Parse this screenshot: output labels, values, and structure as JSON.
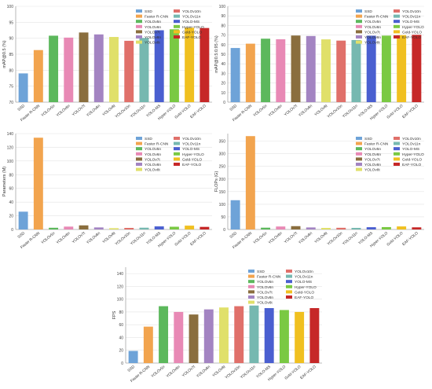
{
  "chart_data": [
    {
      "type": "bar",
      "title": "",
      "xlabel": "",
      "ylabel": "mAP@0.5 (%)",
      "ylim": [
        70,
        100
      ],
      "yticks": [
        70,
        75,
        80,
        85,
        90,
        95,
        100
      ],
      "grid": true,
      "legend": "top-right, two columns",
      "categories": [
        "SSD",
        "Faster R-CNN",
        "YOLOv5n",
        "YOLOv6n",
        "YOLOv7t",
        "YOLOv8n",
        "YOLOv8t",
        "YOLOv10n",
        "YOLOv11n",
        "YOLO-MS",
        "Hyper-YOLO",
        "Gold-YOLO",
        "EAF-YOLO"
      ],
      "values": [
        79.0,
        86.3,
        90.8,
        90.2,
        91.8,
        91.2,
        90.4,
        89.2,
        90.1,
        92.5,
        92.8,
        93.3,
        93.2
      ]
    },
    {
      "type": "bar",
      "title": "",
      "xlabel": "",
      "ylabel": "mAP@0.5:0.95 (%)",
      "ylim": [
        0,
        100
      ],
      "yticks": [
        0,
        10,
        20,
        30,
        40,
        50,
        60,
        70,
        80,
        90,
        100
      ],
      "grid": true,
      "legend": "top-right, two columns",
      "categories": [
        "SSD",
        "Faster R-CNN",
        "YOLOv5n",
        "YOLOv6n",
        "YOLOv7t",
        "YOLOv8n",
        "YOLOv8t",
        "YOLOv10n",
        "YOLOv11n",
        "YOLO-MS",
        "Hyper-YOLO",
        "Gold-YOLO",
        "EAF-YOLO"
      ],
      "values": [
        56.5,
        61.0,
        66.2,
        65.6,
        69.5,
        69.0,
        65.5,
        64.2,
        64.8,
        69.3,
        69.4,
        69.9,
        70.2
      ]
    },
    {
      "type": "bar",
      "title": "",
      "xlabel": "",
      "ylabel": "Parameters (M)",
      "ylim": [
        0,
        140
      ],
      "yticks": [
        0,
        20,
        40,
        60,
        80,
        100,
        120,
        140
      ],
      "grid": true,
      "legend": "top-right, two columns",
      "categories": [
        "SSD",
        "Faster R-CNN",
        "YOLOv5n",
        "YOLOv6n",
        "YOLOv7t",
        "YOLOv8n",
        "YOLOv8t",
        "YOLOv10n",
        "YOLOv11n",
        "YOLO-MS",
        "Hyper-YOLO",
        "Gold-YOLO",
        "EAF-YOLO"
      ],
      "values": [
        26.0,
        134.0,
        2.5,
        4.2,
        6.0,
        3.0,
        1.9,
        2.3,
        2.6,
        4.5,
        4.0,
        5.6,
        3.8
      ]
    },
    {
      "type": "bar",
      "title": "",
      "xlabel": "",
      "ylabel": "FLOPs (G)",
      "ylim": [
        0,
        380
      ],
      "yticks": [
        0,
        50,
        100,
        150,
        200,
        250,
        300,
        350
      ],
      "grid": true,
      "legend": "top-right, two columns",
      "categories": [
        "SSD",
        "Faster R-CNN",
        "YOLOv5n",
        "YOLOv6n",
        "YOLOv7t",
        "YOLOv8n",
        "YOLOv8t",
        "YOLOv10n",
        "YOLOv11n",
        "YOLO-MS",
        "Hyper-YOLO",
        "Gold-YOLO",
        "EAF-YOLO"
      ],
      "values": [
        116.0,
        370.0,
        7.1,
        11.8,
        13.2,
        8.1,
        6.2,
        6.7,
        6.3,
        9.0,
        9.5,
        12.1,
        8.5
      ]
    },
    {
      "type": "bar",
      "title": "",
      "xlabel": "",
      "ylabel": "FPS",
      "ylim": [
        0,
        150
      ],
      "yticks": [
        0,
        20,
        40,
        60,
        80,
        100,
        120,
        140
      ],
      "grid": true,
      "legend": "top-right, two columns",
      "categories": [
        "SSD",
        "Faster R-CNN",
        "YOLOv5n",
        "YOLOv6n",
        "YOLOv7t",
        "YOLOv8n",
        "YOLOv8t",
        "YOLOv10n",
        "YOLOv11n",
        "YOLO-MS",
        "Hyper-YOLO",
        "Gold-YOLO",
        "EAF-YOLO"
      ],
      "values": [
        19,
        57,
        89,
        80,
        76,
        84,
        87,
        89,
        90,
        86,
        83,
        80,
        86
      ]
    }
  ],
  "series_colors": [
    "#6ea3d8",
    "#f2a44e",
    "#5cb85c",
    "#e889b5",
    "#8a6e3e",
    "#a384c2",
    "#e0e06a",
    "#e0706a",
    "#76b8b0",
    "#4a5fd0",
    "#7ac943",
    "#f0c020",
    "#c62828"
  ],
  "legend_column_1": [
    "SSD",
    "Faster R-CNN",
    "YOLOv5n",
    "YOLOv6n",
    "YOLOv7t",
    "YOLOv8n",
    "YOLOv8t"
  ],
  "legend_column_2": [
    "YOLOv10n",
    "YOLOv11n",
    "YOLO-MS",
    "Hyper-YOLO",
    "Gold-YOLO",
    "EAF-YOLO"
  ]
}
